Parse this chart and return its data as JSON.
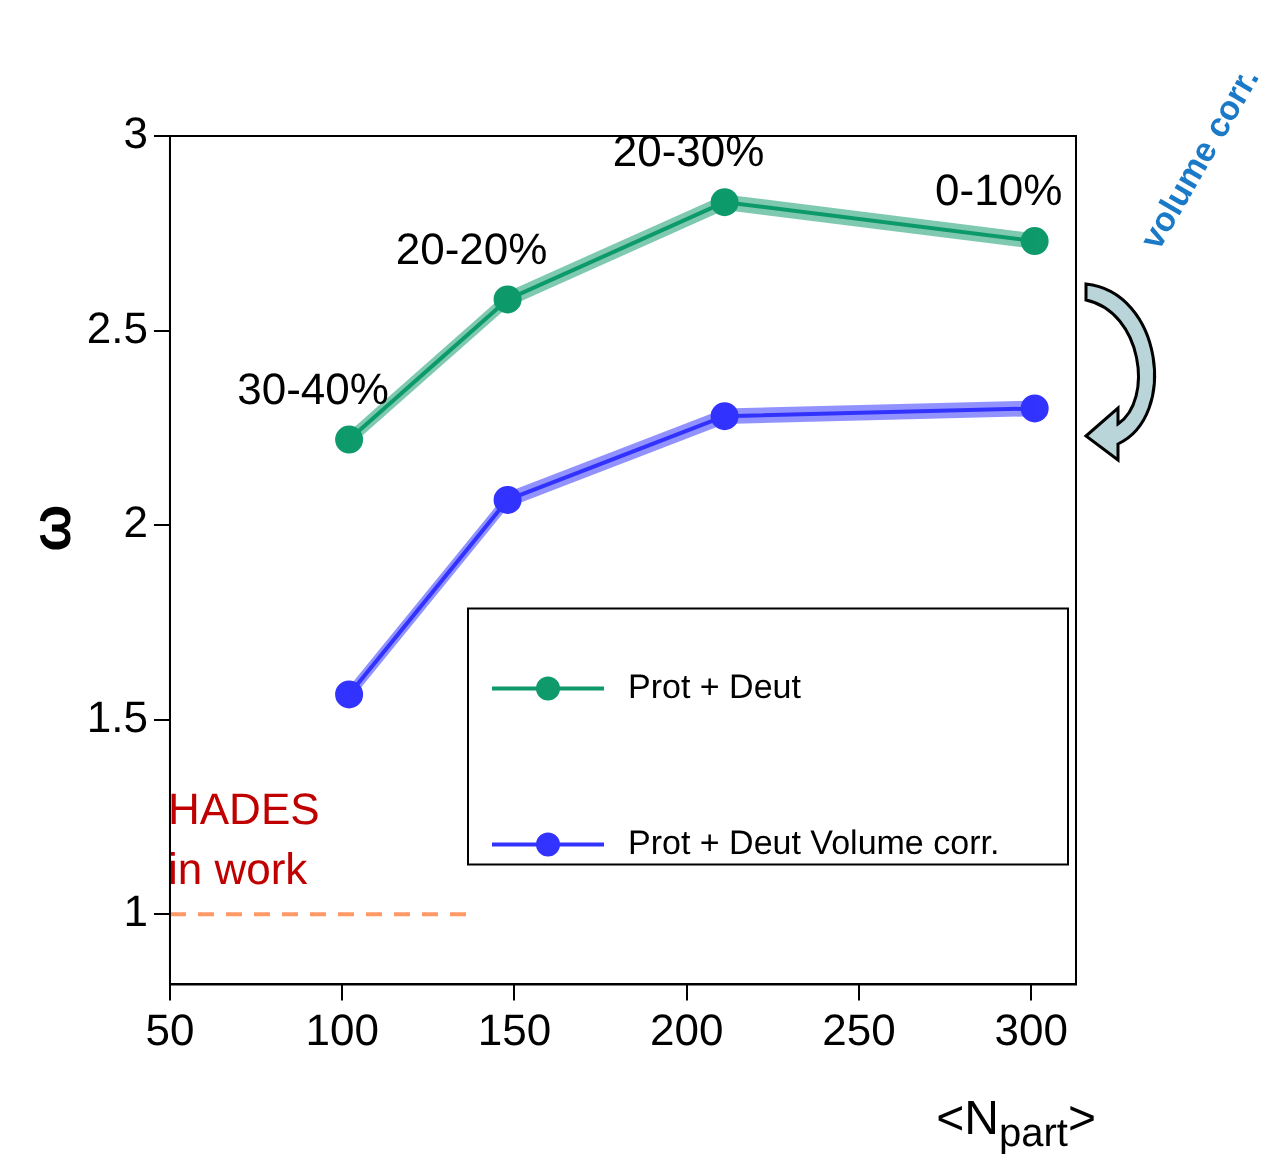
{
  "chart_data": {
    "type": "line",
    "xlabel": "<N$_{part}$>",
    "ylabel": "ω",
    "x": [
      102,
      148,
      211,
      301
    ],
    "series": [
      {
        "name": "Prot + Deut",
        "color": "#0e9a6a",
        "values": [
          2.22,
          2.58,
          2.83,
          2.73
        ],
        "lower": [
          2.2,
          2.56,
          2.81,
          2.71
        ],
        "upper": [
          2.24,
          2.6,
          2.85,
          2.75
        ]
      },
      {
        "name": "Prot + Deut Volume corr.",
        "color": "#3333ff",
        "values": [
          1.565,
          2.065,
          2.28,
          2.3
        ],
        "lower": [
          1.545,
          2.045,
          2.26,
          2.28
        ],
        "upper": [
          1.585,
          2.085,
          2.3,
          2.32
        ]
      }
    ],
    "xlim": [
      50,
      313
    ],
    "xticks": [
      50,
      100,
      150,
      200,
      250,
      300
    ],
    "ylim": [
      0.82,
      3
    ],
    "yticks": [
      1,
      1.5,
      2,
      2.5,
      3
    ],
    "marker": "circle",
    "line_style": "solid",
    "legend": "bottom right",
    "ref_lines": [
      {
        "axis": "y",
        "value": 1,
        "color": "#ff9966",
        "line_style": "dashed"
      }
    ],
    "annotations": [
      {
        "text": "30-40%",
        "x": 102,
        "y": 2.22
      },
      {
        "text": "20-20%",
        "x": 148,
        "y": 2.58
      },
      {
        "text": "20-30%",
        "x": 211,
        "y": 2.83
      },
      {
        "text": "0-10%",
        "x": 301,
        "y": 2.73
      },
      "HADES\nin work",
      "volume corr."
    ]
  }
}
